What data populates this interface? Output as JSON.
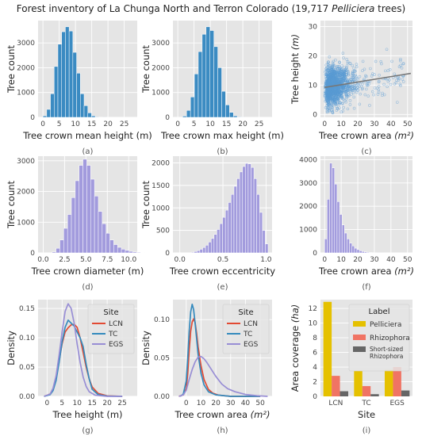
{
  "title": {
    "prefix": "Forest inventory of La Chunga North and Terron Colorado (19,717 ",
    "italic": "Pelliciera",
    "suffix": " trees)"
  },
  "colors": {
    "blue_bar": "#3b8bc2",
    "purple_bar": "#a29bdd",
    "panel_bg": "#e5e5e5",
    "grid": "#ffffff",
    "LCN": "#e24a33",
    "TC": "#348abd",
    "EGS": "#988ed5",
    "scatter": "#5a9bd4",
    "fit": "#777777",
    "Pelliciera": "#e5c100",
    "Rhizophora": "#f07464",
    "Short-sized Rhizophora": "#666666"
  },
  "chart_data": [
    {
      "id": "a",
      "type": "bar",
      "caption": "(a)",
      "xlabel": "Tree crown mean height (m)",
      "ylabel": "Tree count",
      "xlim": [
        -1.5,
        29
      ],
      "ylim": [
        0,
        3900
      ],
      "xticks": [
        0,
        5,
        10,
        15,
        20,
        25
      ],
      "yticks": [
        0,
        1000,
        2000,
        3000
      ],
      "bin_start": 0,
      "bin_width": 1.15,
      "values": [
        60,
        320,
        950,
        2050,
        2950,
        3450,
        3650,
        3480,
        2620,
        1780,
        950,
        470,
        180,
        60,
        20,
        8,
        4
      ],
      "color": "blue_bar"
    },
    {
      "id": "b",
      "type": "bar",
      "caption": "(b)",
      "xlabel": "Tree crown max height (m)",
      "ylabel": "Tree count",
      "xlim": [
        -1.5,
        29
      ],
      "ylim": [
        0,
        3900
      ],
      "xticks": [
        0,
        5,
        10,
        15,
        20,
        25
      ],
      "yticks": [
        0,
        1000,
        2000,
        3000
      ],
      "bin_start": 1.5,
      "bin_width": 1.2,
      "values": [
        50,
        280,
        820,
        1750,
        2650,
        3350,
        3650,
        3500,
        2850,
        2000,
        1050,
        500,
        200,
        60,
        20,
        6
      ],
      "color": "blue_bar"
    },
    {
      "id": "c",
      "type": "scatter",
      "caption": "(c)",
      "xlabel": "Tree crown area",
      "xlabel_math": "(m²)",
      "ylabel": "Tree height",
      "ylabel_math": "(m)",
      "xlim": [
        -2.5,
        53
      ],
      "ylim": [
        -1,
        32
      ],
      "xticks": [
        0,
        10,
        20,
        30,
        40,
        50
      ],
      "yticks": [
        0,
        10,
        20,
        30
      ],
      "n_points": 19717,
      "fit_line": {
        "x": [
          0,
          52
        ],
        "y": [
          9.2,
          14.0
        ]
      },
      "color": "scatter"
    },
    {
      "id": "d",
      "type": "bar",
      "caption": "(d)",
      "xlabel": "Tree crown diameter (m)",
      "ylabel": "Tree count",
      "xlim": [
        -0.6,
        11
      ],
      "ylim": [
        0,
        3150
      ],
      "xticks": [
        0.0,
        2.5,
        5.0,
        7.5,
        10.0
      ],
      "yticks": [
        0,
        1000,
        2000,
        3000
      ],
      "bin_start": 1.05,
      "bin_width": 0.45,
      "values": [
        30,
        150,
        420,
        800,
        1250,
        1800,
        2350,
        2850,
        3050,
        2850,
        2400,
        1850,
        1350,
        950,
        640,
        420,
        270,
        180,
        120,
        80,
        50,
        30,
        20,
        12
      ],
      "color": "purple_bar"
    },
    {
      "id": "e",
      "type": "bar",
      "caption": "(e)",
      "xlabel": "Tree crown eccentricity",
      "ylabel": "Tree count",
      "xlim": [
        -0.08,
        1.07
      ],
      "ylim": [
        0,
        2150
      ],
      "xticks": [
        0.0,
        0.5,
        1.0
      ],
      "yticks": [
        0,
        500,
        1000,
        1500,
        2000
      ],
      "bin_start": 0.1,
      "bin_width": 0.033,
      "values": [
        5,
        15,
        30,
        50,
        80,
        120,
        170,
        240,
        320,
        410,
        520,
        650,
        790,
        950,
        1120,
        1300,
        1480,
        1650,
        1800,
        1920,
        1990,
        1980,
        1900,
        1650,
        1300,
        900,
        500,
        200
      ],
      "color": "purple_bar"
    },
    {
      "id": "f",
      "type": "bar",
      "caption": "(f)",
      "xlabel": "Tree crown area",
      "xlabel_math": "(m²)",
      "ylabel": "",
      "xlim": [
        -2.5,
        53
      ],
      "ylim": [
        0,
        4150
      ],
      "xticks": [
        0,
        10,
        20,
        30,
        40,
        50
      ],
      "yticks": [
        0,
        1000,
        2000,
        3000,
        4000
      ],
      "bin_start": 0,
      "bin_width": 1.5,
      "values": [
        600,
        2300,
        3850,
        3650,
        2950,
        2200,
        1650,
        1200,
        850,
        600,
        420,
        300,
        200,
        140,
        90,
        60,
        40,
        28,
        18,
        12,
        8,
        5,
        3,
        2
      ],
      "color": "purple_bar"
    },
    {
      "id": "g",
      "type": "line",
      "caption": "(g)",
      "xlabel": "Tree height (m)",
      "ylabel": "Density",
      "xlim": [
        -3,
        30
      ],
      "ylim": [
        0,
        0.165
      ],
      "xticks": [
        0,
        5,
        10,
        15,
        20,
        25
      ],
      "yticks": [
        0.0,
        0.05,
        0.1,
        0.15
      ],
      "legend_title": "Site",
      "legend_pos": "top-right",
      "series": [
        {
          "name": "LCN",
          "color": "LCN",
          "points": [
            [
              -1,
              0
            ],
            [
              1,
              0.004
            ],
            [
              2,
              0.012
            ],
            [
              3,
              0.03
            ],
            [
              4,
              0.06
            ],
            [
              5,
              0.09
            ],
            [
              6,
              0.11
            ],
            [
              7,
              0.117
            ],
            [
              8,
              0.122
            ],
            [
              9,
              0.123
            ],
            [
              10,
              0.118
            ],
            [
              11,
              0.1
            ],
            [
              12,
              0.075
            ],
            [
              13,
              0.05
            ],
            [
              14,
              0.03
            ],
            [
              15,
              0.016
            ],
            [
              17,
              0.005
            ],
            [
              20,
              0.001
            ],
            [
              25,
              0
            ]
          ]
        },
        {
          "name": "TC",
          "color": "TC",
          "points": [
            [
              -1,
              0
            ],
            [
              1,
              0.003
            ],
            [
              2,
              0.01
            ],
            [
              3,
              0.027
            ],
            [
              4,
              0.058
            ],
            [
              5,
              0.093
            ],
            [
              6,
              0.118
            ],
            [
              7,
              0.13
            ],
            [
              8,
              0.125
            ],
            [
              9,
              0.12
            ],
            [
              10,
              0.11
            ],
            [
              11,
              0.1
            ],
            [
              12,
              0.085
            ],
            [
              13,
              0.055
            ],
            [
              14,
              0.03
            ],
            [
              15,
              0.012
            ],
            [
              17,
              0.003
            ],
            [
              20,
              0.0005
            ],
            [
              25,
              0
            ]
          ]
        },
        {
          "name": "EGS",
          "color": "EGS",
          "points": [
            [
              -1,
              0
            ],
            [
              1,
              0.004
            ],
            [
              2,
              0.014
            ],
            [
              3,
              0.035
            ],
            [
              4,
              0.07
            ],
            [
              5,
              0.11
            ],
            [
              6,
              0.145
            ],
            [
              7,
              0.158
            ],
            [
              8,
              0.15
            ],
            [
              9,
              0.125
            ],
            [
              10,
              0.09
            ],
            [
              11,
              0.058
            ],
            [
              12,
              0.033
            ],
            [
              13,
              0.017
            ],
            [
              14,
              0.008
            ],
            [
              16,
              0.002
            ],
            [
              20,
              0
            ],
            [
              25,
              0
            ]
          ]
        }
      ]
    },
    {
      "id": "h",
      "type": "line",
      "caption": "(h)",
      "xlabel": "Tree crown area",
      "xlabel_math": "(m²)",
      "ylabel": "Density",
      "xlim": [
        -9,
        58
      ],
      "ylim": [
        0,
        0.126
      ],
      "xticks": [
        0,
        10,
        20,
        30,
        40,
        50
      ],
      "yticks": [
        0.0,
        0.05,
        0.1
      ],
      "legend_title": "Site",
      "legend_pos": "top-right",
      "series": [
        {
          "name": "LCN",
          "color": "LCN",
          "points": [
            [
              -5,
              0
            ],
            [
              -2,
              0.002
            ],
            [
              0,
              0.01
            ],
            [
              1,
              0.03
            ],
            [
              2,
              0.06
            ],
            [
              3,
              0.085
            ],
            [
              4,
              0.097
            ],
            [
              5,
              0.101
            ],
            [
              6,
              0.096
            ],
            [
              7,
              0.082
            ],
            [
              8,
              0.065
            ],
            [
              10,
              0.04
            ],
            [
              12,
              0.022
            ],
            [
              15,
              0.009
            ],
            [
              18,
              0.004
            ],
            [
              22,
              0.0015
            ],
            [
              30,
              0
            ],
            [
              50,
              0
            ]
          ]
        },
        {
          "name": "TC",
          "color": "TC",
          "points": [
            [
              -4,
              0
            ],
            [
              -2,
              0.003
            ],
            [
              0,
              0.02
            ],
            [
              1,
              0.05
            ],
            [
              2,
              0.085
            ],
            [
              3,
              0.11
            ],
            [
              4,
              0.12
            ],
            [
              5,
              0.113
            ],
            [
              6,
              0.095
            ],
            [
              7,
              0.075
            ],
            [
              8,
              0.055
            ],
            [
              10,
              0.03
            ],
            [
              12,
              0.015
            ],
            [
              15,
              0.006
            ],
            [
              20,
              0.002
            ],
            [
              30,
              0
            ],
            [
              50,
              0
            ]
          ]
        },
        {
          "name": "EGS",
          "color": "EGS",
          "points": [
            [
              -5,
              0
            ],
            [
              -2,
              0.002
            ],
            [
              0,
              0.008
            ],
            [
              2,
              0.022
            ],
            [
              4,
              0.035
            ],
            [
              6,
              0.045
            ],
            [
              8,
              0.051
            ],
            [
              10,
              0.052
            ],
            [
              12,
              0.049
            ],
            [
              14,
              0.044
            ],
            [
              16,
              0.038
            ],
            [
              20,
              0.026
            ],
            [
              24,
              0.016
            ],
            [
              28,
              0.01
            ],
            [
              33,
              0.006
            ],
            [
              40,
              0.0025
            ],
            [
              48,
              0.0008
            ],
            [
              55,
              0
            ]
          ]
        }
      ]
    },
    {
      "id": "i",
      "type": "bar",
      "caption": "(i)",
      "xlabel": "Site",
      "ylabel": "Area coverage",
      "ylabel_math": "(ha)",
      "ylim": [
        0,
        13.2
      ],
      "yticks": [
        0,
        2,
        4,
        6,
        8,
        10,
        12
      ],
      "categories": [
        "LCN",
        "TC",
        "EGS"
      ],
      "legend_title": "Label",
      "legend_pos": "top-right",
      "series": [
        {
          "name": "Pelliciera",
          "color": "Pelliciera",
          "values": [
            12.9,
            3.5,
            3.6
          ]
        },
        {
          "name": "Rhizophora",
          "color": "Rhizophora",
          "values": [
            2.8,
            1.4,
            4.0
          ]
        },
        {
          "name": "Short-sized Rhizophora",
          "color": "Short-sized Rhizophora",
          "values": [
            0.7,
            0.3,
            0.8
          ]
        }
      ]
    }
  ]
}
